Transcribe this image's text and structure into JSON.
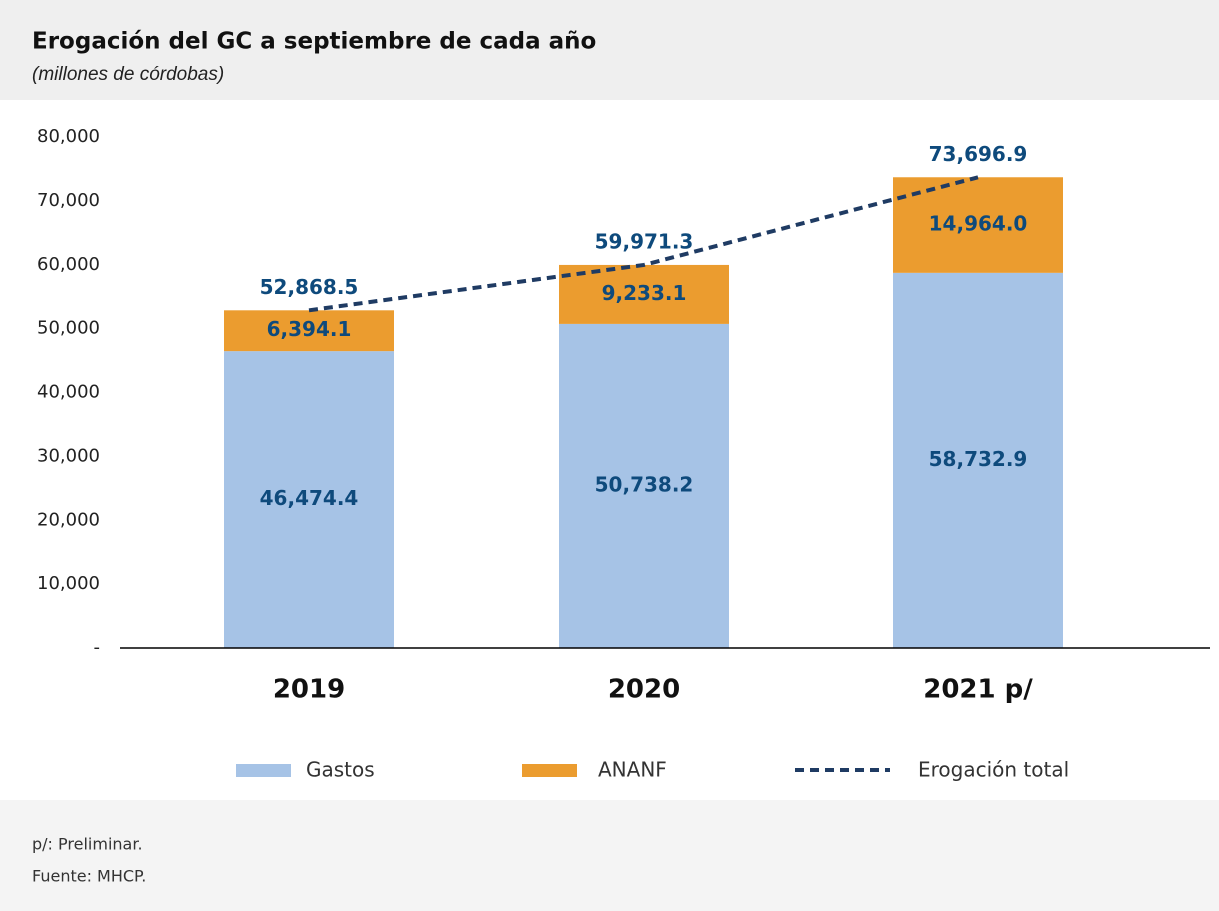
{
  "chart_data": {
    "type": "bar",
    "stacked": true,
    "title": "Erogación del GC a septiembre de cada año",
    "subtitle": "(millones de córdobas)",
    "categories": [
      "2019",
      "2020",
      "2021 p/"
    ],
    "series": [
      {
        "name": "Gastos",
        "color": "#a6c3e6",
        "values": [
          46474.4,
          50738.2,
          58732.9
        ],
        "value_labels": [
          "46,474.4",
          "50,738.2",
          "58,732.9"
        ]
      },
      {
        "name": "ANANF",
        "color": "#eb9c2f",
        "values": [
          6394.1,
          9233.1,
          14964.0
        ],
        "value_labels": [
          "6,394.1",
          "9,233.1",
          "14,964.0"
        ]
      },
      {
        "name": "Erogación total",
        "type": "line",
        "dashed": true,
        "color": "#1f3b63",
        "values": [
          52868.5,
          59971.3,
          73696.9
        ],
        "value_labels": [
          "52,868.5",
          "59,971.3",
          "73,696.9"
        ]
      }
    ],
    "ylim": [
      0,
      80000
    ],
    "yticks": [
      {
        "value": 0,
        "label": "-"
      },
      {
        "value": 10000,
        "label": "10,000"
      },
      {
        "value": 20000,
        "label": "20,000"
      },
      {
        "value": 30000,
        "label": "30,000"
      },
      {
        "value": 40000,
        "label": "40,000"
      },
      {
        "value": 50000,
        "label": "50,000"
      },
      {
        "value": 60000,
        "label": "60,000"
      },
      {
        "value": 70000,
        "label": "70,000"
      },
      {
        "value": 80000,
        "label": "80,000"
      }
    ],
    "grid": false,
    "legend": "bottom",
    "notes": [
      "p/: Preliminar.",
      "Fuente: MHCP."
    ]
  }
}
